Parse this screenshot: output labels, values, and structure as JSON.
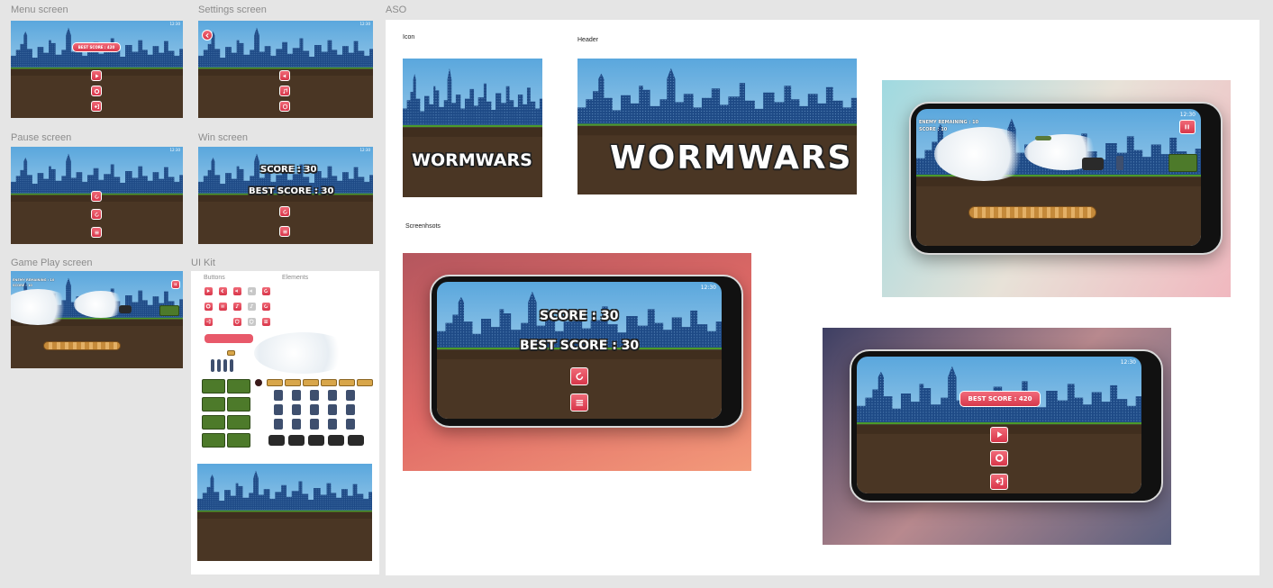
{
  "frames": {
    "menu": "Menu screen",
    "settings": "Settings screen",
    "pause": "Pause screen",
    "win": "Win screen",
    "gameplay": "Game Play screen",
    "uikit": "UI Kit",
    "aso": "ASO"
  },
  "uikit": {
    "buttons_label": "Buttons",
    "elements_label": "Elements"
  },
  "aso": {
    "icon_label": "Icon",
    "header_label": "Header",
    "screenshots_label": "Screenhsots"
  },
  "game": {
    "title": "WORMWARS",
    "best_score_pill": "BEST SCORE : 420",
    "score_text": "SCORE : 30",
    "best_score_text": "BEST SCORE : 30",
    "hud_enemy": "ENEMY REMAINING : 10",
    "hud_score": "SCORE : 10",
    "status_time": "12:30"
  },
  "colors": {
    "sky_top": "#5aa7dd",
    "sky_bottom": "#cfe6f3",
    "buildings": "#1e4a86",
    "ground": "#4a3624",
    "grass": "#4c9a2a",
    "button_red": "#e24a5c",
    "canvas_bg": "#e5e5e5"
  },
  "icons": {
    "play": "play-icon",
    "settings": "gear-icon",
    "exit": "exit-icon",
    "back": "back-arrow-icon",
    "sound": "speaker-icon",
    "music": "music-note-icon",
    "restart": "restart-icon",
    "menu": "list-icon",
    "pause": "pause-icon"
  }
}
